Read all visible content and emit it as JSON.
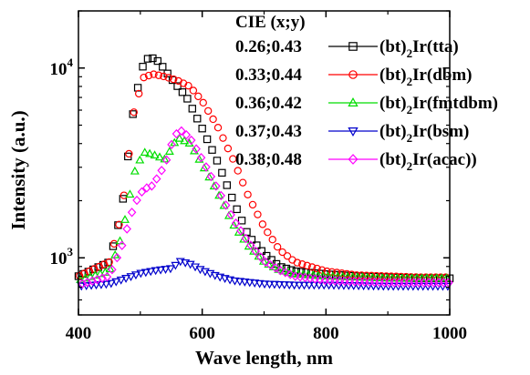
{
  "chart_data": {
    "type": "scatter",
    "title": "",
    "xlabel": "Wave length, nm",
    "ylabel": "Intensity (a.u.)",
    "xlim": [
      400,
      1000
    ],
    "ylim": [
      500,
      20000
    ],
    "yscale": "log",
    "grid": false,
    "legend_position": "top-right",
    "legend_header": "CIE (x;y)",
    "x_ticks": [
      "400",
      "600",
      "800",
      "1000"
    ],
    "y_ticks": [
      {
        "base": "10",
        "exp": "3",
        "value": 1000
      },
      {
        "base": "10",
        "exp": "4",
        "value": 10000
      }
    ],
    "series": [
      {
        "cie": "0.26;0.43",
        "name_prefix": "(bt)",
        "name_sub": "2",
        "name_suffix": "Ir(tta)",
        "color": "#000000",
        "marker": "square",
        "points": [
          [
            400,
            800
          ],
          [
            450,
            950
          ],
          [
            470,
            1800
          ],
          [
            490,
            6500
          ],
          [
            505,
            10500
          ],
          [
            515,
            11500
          ],
          [
            530,
            10800
          ],
          [
            550,
            8800
          ],
          [
            575,
            7000
          ],
          [
            600,
            4800
          ],
          [
            625,
            3200
          ],
          [
            650,
            2000
          ],
          [
            675,
            1300
          ],
          [
            700,
            1050
          ],
          [
            725,
            900
          ],
          [
            750,
            850
          ],
          [
            800,
            820
          ],
          [
            850,
            800
          ],
          [
            900,
            790
          ],
          [
            950,
            780
          ],
          [
            1000,
            780
          ]
        ]
      },
      {
        "cie": "0.33;0.44",
        "name_prefix": "(bt)",
        "name_sub": "2",
        "name_suffix": "Ir(dbm)",
        "color": "#ff0000",
        "marker": "circle",
        "points": [
          [
            400,
            800
          ],
          [
            450,
            950
          ],
          [
            470,
            1700
          ],
          [
            490,
            6000
          ],
          [
            505,
            8900
          ],
          [
            520,
            9300
          ],
          [
            540,
            9000
          ],
          [
            560,
            8600
          ],
          [
            580,
            8000
          ],
          [
            600,
            6700
          ],
          [
            625,
            4900
          ],
          [
            650,
            3300
          ],
          [
            675,
            2100
          ],
          [
            700,
            1450
          ],
          [
            725,
            1100
          ],
          [
            750,
            950
          ],
          [
            800,
            850
          ],
          [
            850,
            810
          ],
          [
            900,
            800
          ],
          [
            950,
            790
          ],
          [
            1000,
            790
          ]
        ]
      },
      {
        "cie": "0.36;0.42",
        "name_prefix": "(bt)",
        "name_sub": "2",
        "name_suffix": "Ir(fmtdbm)",
        "color": "#00dd00",
        "marker": "triangle-up",
        "points": [
          [
            400,
            760
          ],
          [
            450,
            850
          ],
          [
            470,
            1300
          ],
          [
            490,
            2800
          ],
          [
            505,
            3600
          ],
          [
            520,
            3500
          ],
          [
            540,
            3300
          ],
          [
            560,
            4300
          ],
          [
            580,
            4000
          ],
          [
            600,
            3100
          ],
          [
            625,
            2200
          ],
          [
            650,
            1500
          ],
          [
            675,
            1150
          ],
          [
            700,
            950
          ],
          [
            725,
            860
          ],
          [
            750,
            820
          ],
          [
            800,
            800
          ],
          [
            850,
            790
          ],
          [
            900,
            780
          ],
          [
            950,
            780
          ],
          [
            1000,
            780
          ]
        ]
      },
      {
        "cie": "0.37;0.43",
        "name_prefix": "(bt)",
        "name_sub": "2",
        "name_suffix": "Ir(bsm)",
        "color": "#0000cc",
        "marker": "triangle-down",
        "points": [
          [
            400,
            710
          ],
          [
            450,
            730
          ],
          [
            500,
            830
          ],
          [
            525,
            860
          ],
          [
            550,
            880
          ],
          [
            565,
            960
          ],
          [
            580,
            930
          ],
          [
            600,
            860
          ],
          [
            625,
            800
          ],
          [
            650,
            760
          ],
          [
            700,
            730
          ],
          [
            750,
            720
          ],
          [
            800,
            720
          ],
          [
            850,
            715
          ],
          [
            900,
            710
          ],
          [
            950,
            710
          ],
          [
            1000,
            710
          ]
        ]
      },
      {
        "cie": "0.38;0.48",
        "name_prefix": "(bt)",
        "name_sub": "2",
        "name_suffix": "Ir(acac))",
        "color": "#ff00ff",
        "marker": "diamond",
        "points": [
          [
            400,
            720
          ],
          [
            450,
            800
          ],
          [
            470,
            1150
          ],
          [
            490,
            1900
          ],
          [
            505,
            2300
          ],
          [
            520,
            2400
          ],
          [
            540,
            3100
          ],
          [
            555,
            4400
          ],
          [
            565,
            4700
          ],
          [
            580,
            4300
          ],
          [
            600,
            3300
          ],
          [
            625,
            2300
          ],
          [
            650,
            1600
          ],
          [
            675,
            1200
          ],
          [
            700,
            960
          ],
          [
            725,
            860
          ],
          [
            750,
            800
          ],
          [
            800,
            760
          ],
          [
            850,
            750
          ],
          [
            900,
            740
          ],
          [
            950,
            740
          ],
          [
            1000,
            740
          ]
        ]
      }
    ]
  }
}
